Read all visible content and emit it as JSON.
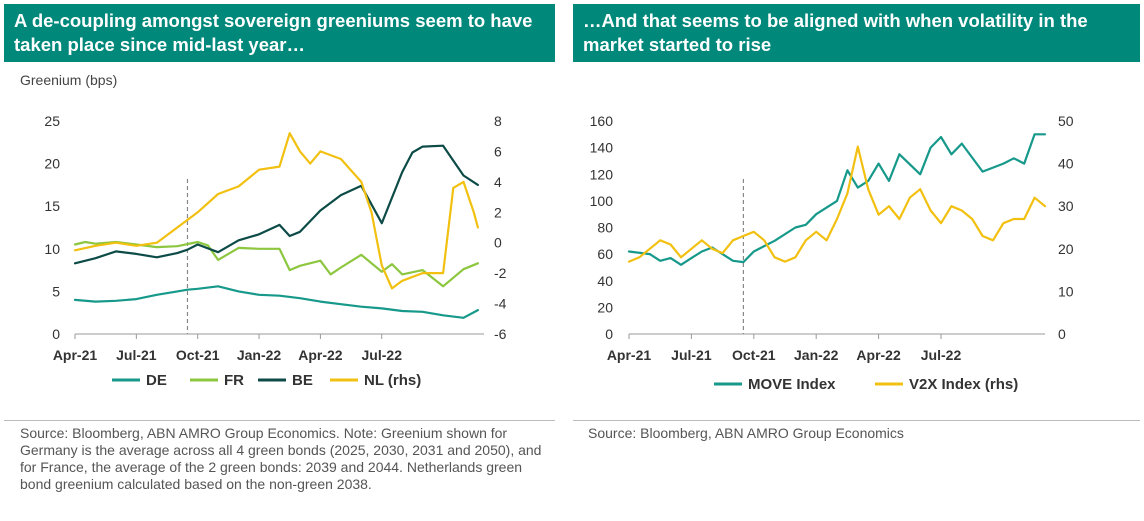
{
  "left_panel": {
    "title": "A de-coupling amongst sovereign greeniums seem to have taken place since mid-last year…",
    "unit_label": "Greenium (bps)",
    "source": "Source: Bloomberg, ABN AMRO Group Economics. Note: Greenium shown for Germany is the average across all 4 green bonds (2025, 2030, 2031 and 2050), and for France, the average of the 2 green bonds: 2039 and 2044. Netherlands green bond greenium calculated based on the non-green 2038."
  },
  "right_panel": {
    "title": "…And that seems to be aligned with when volatility in the market started to rise",
    "source": "Source: Bloomberg, ABN AMRO Group Economics"
  },
  "colors": {
    "header_bg": "#00897b",
    "DE": "#16998a",
    "FR": "#8dc63f",
    "BE": "#0d4b47",
    "NL": "#f2c010",
    "MOVE": "#16998a",
    "V2X": "#f2c010",
    "vline": "#888888"
  },
  "chart_data": [
    {
      "type": "line",
      "title": "A de-coupling amongst sovereign greeniums seem to have taken place since mid-last year…",
      "ylabel": "Greenium (bps)",
      "ylim": [
        0,
        25
      ],
      "ylim_rhs": [
        -6,
        8
      ],
      "yticks": [
        "0",
        "5",
        "10",
        "15",
        "20",
        "25"
      ],
      "yticks_rhs": [
        "-6",
        "-4",
        "-2",
        "0",
        "2",
        "4",
        "6",
        "8"
      ],
      "x_range": [
        0,
        20
      ],
      "x_tick_pos": [
        0,
        3,
        6,
        9,
        12,
        15
      ],
      "x_tick_labels": [
        "Apr-21",
        "Jul-21",
        "Oct-21",
        "Jan-22",
        "Apr-22",
        "Jul-22"
      ],
      "vline_x": 5.5,
      "series": [
        {
          "name": "DE",
          "axis": "left",
          "x": [
            0,
            1,
            2,
            3,
            4,
            5,
            5.5,
            6,
            7,
            8,
            9,
            10,
            11,
            12,
            13,
            14,
            15,
            16,
            17,
            18,
            19,
            19.7
          ],
          "values": [
            4.0,
            3.8,
            3.9,
            4.1,
            4.6,
            5.0,
            5.2,
            5.3,
            5.6,
            5.0,
            4.6,
            4.5,
            4.2,
            3.8,
            3.5,
            3.2,
            3.0,
            2.7,
            2.6,
            2.2,
            1.9,
            2.8
          ]
        },
        {
          "name": "FR",
          "axis": "left",
          "x": [
            0,
            0.5,
            1,
            2,
            3,
            4,
            5,
            6,
            6.5,
            7,
            8,
            9,
            10,
            10.5,
            11,
            12,
            12.5,
            13,
            14,
            15,
            15.5,
            16,
            17,
            18,
            19,
            19.7
          ],
          "values": [
            10.5,
            10.8,
            10.6,
            10.8,
            10.5,
            10.2,
            10.3,
            10.8,
            10.4,
            8.7,
            10.1,
            10.0,
            10.0,
            7.5,
            8.0,
            8.6,
            7.0,
            7.8,
            9.3,
            7.3,
            8.2,
            7.0,
            7.5,
            5.6,
            7.6,
            8.3
          ]
        },
        {
          "name": "BE",
          "axis": "left",
          "x": [
            0,
            1,
            2,
            3,
            4,
            5,
            5.5,
            6,
            7,
            8,
            9,
            10,
            10.5,
            11,
            12,
            13,
            14,
            15,
            16,
            16.5,
            17,
            18,
            19,
            19.7
          ],
          "values": [
            8.3,
            8.9,
            9.7,
            9.4,
            9.0,
            9.5,
            9.9,
            10.5,
            9.6,
            11.0,
            11.7,
            12.8,
            11.5,
            12.0,
            14.5,
            16.3,
            17.4,
            13.0,
            19.0,
            21.3,
            22.0,
            22.1,
            18.6,
            17.5
          ]
        },
        {
          "name": "NL (rhs)",
          "axis": "right",
          "x": [
            0,
            1,
            2,
            3,
            4,
            5,
            6,
            7,
            8,
            9,
            10,
            10.5,
            11,
            11.5,
            12,
            13,
            14,
            14.5,
            15,
            15.5,
            16,
            17,
            18,
            18.5,
            19,
            19.5,
            19.7
          ],
          "values": [
            -0.5,
            -0.2,
            0.0,
            -0.2,
            0.0,
            1.0,
            2.0,
            3.2,
            3.7,
            4.8,
            5.0,
            7.2,
            6.0,
            5.2,
            6.0,
            5.5,
            4.0,
            2.0,
            -1.5,
            -3.0,
            -2.5,
            -2.0,
            -2.0,
            3.6,
            4.0,
            2.0,
            1.0
          ]
        }
      ]
    },
    {
      "type": "line",
      "ylim": [
        0,
        160
      ],
      "ylim_rhs": [
        0,
        50
      ],
      "yticks": [
        "0",
        "20",
        "40",
        "60",
        "80",
        "100",
        "120",
        "140",
        "160"
      ],
      "yticks_rhs": [
        "0",
        "10",
        "20",
        "30",
        "40",
        "50"
      ],
      "x_range": [
        0,
        20
      ],
      "x_tick_pos": [
        0,
        3,
        6,
        9,
        12,
        15
      ],
      "x_tick_labels": [
        "Apr-21",
        "Jul-21",
        "Oct-21",
        "Jan-22",
        "Apr-22",
        "Jul-22"
      ],
      "vline_x": 5.5,
      "series": [
        {
          "name": "MOVE Index",
          "axis": "left",
          "x": [
            0,
            1,
            1.5,
            2,
            2.5,
            3,
            3.5,
            4,
            5,
            5.5,
            6,
            7,
            8,
            8.5,
            9,
            10,
            10.5,
            11,
            11.5,
            12,
            12.5,
            13,
            14,
            14.5,
            15,
            15.5,
            16,
            17,
            18,
            18.5,
            19,
            19.5,
            20
          ],
          "values": [
            62,
            60,
            55,
            57,
            52,
            57,
            62,
            65,
            55,
            54,
            62,
            70,
            80,
            82,
            90,
            100,
            123,
            110,
            115,
            128,
            115,
            135,
            120,
            140,
            148,
            135,
            143,
            122,
            128,
            132,
            128,
            150,
            150
          ]
        },
        {
          "name": "V2X Index (rhs)",
          "axis": "right",
          "x": [
            0,
            0.5,
            1,
            1.5,
            2,
            2.5,
            3,
            3.5,
            4,
            4.5,
            5,
            5.5,
            6,
            6.5,
            7,
            7.5,
            8,
            8.5,
            9,
            9.5,
            10,
            10.5,
            11,
            11.5,
            12,
            12.5,
            13,
            13.5,
            14,
            14.5,
            15,
            15.5,
            16,
            16.5,
            17,
            17.5,
            18,
            18.5,
            19,
            19.5,
            20
          ],
          "values": [
            17,
            18,
            20,
            22,
            21,
            18,
            20,
            22,
            20,
            19,
            22,
            23,
            24,
            22,
            18,
            17,
            18,
            22,
            24,
            22,
            27,
            33,
            44,
            34,
            28,
            30,
            27,
            32,
            34,
            29,
            26,
            30,
            29,
            27,
            23,
            22,
            26,
            27,
            27,
            32,
            30
          ]
        }
      ]
    }
  ],
  "legends": {
    "left": [
      "DE",
      "FR",
      "BE",
      "NL (rhs)"
    ],
    "right": [
      "MOVE Index",
      "V2X Index (rhs)"
    ]
  }
}
